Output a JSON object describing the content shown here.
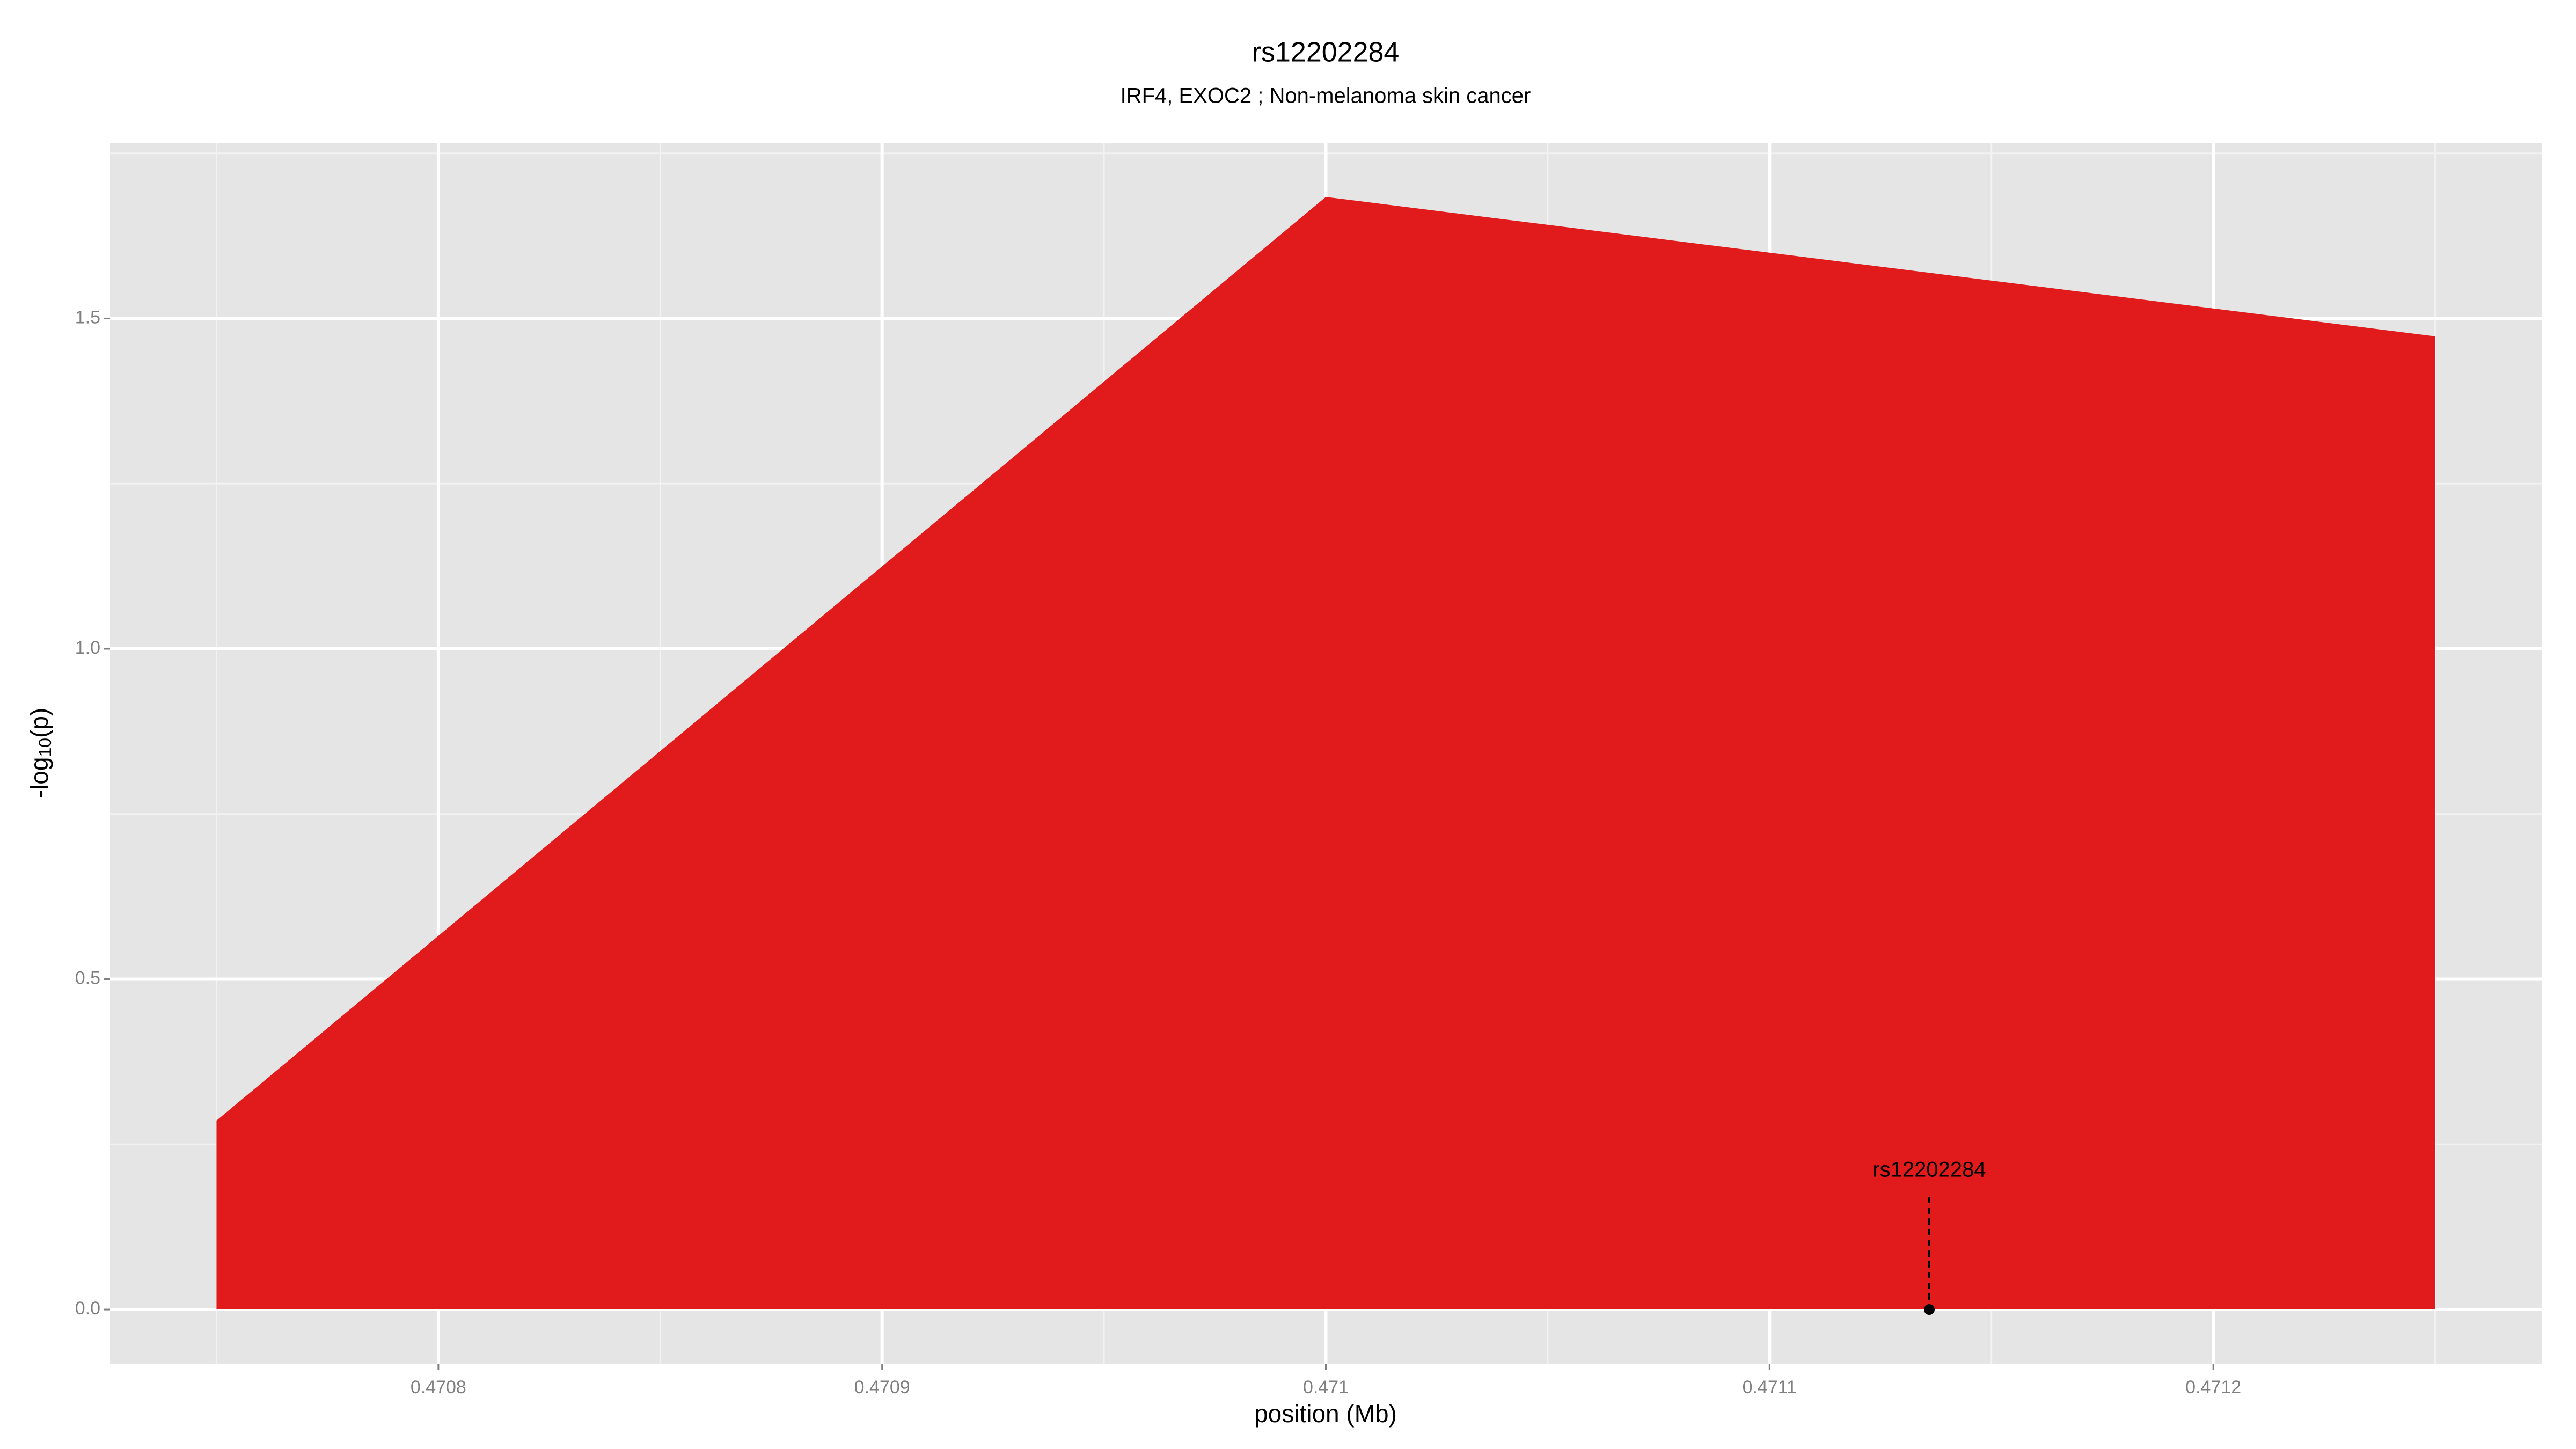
{
  "chart_data": {
    "type": "area",
    "title": "rs12202284",
    "subtitle": "IRF4, EXOC2 ; Non-melanoma skin cancer",
    "x_label": "position (Mb)",
    "y_label": [
      "-log",
      "10",
      "(p)"
    ],
    "x": [
      0.47075,
      0.471,
      0.47125
    ],
    "series": [
      {
        "color": "#e11b1c",
        "values": [
          0.286,
          1.684,
          1.473
        ]
      }
    ],
    "annotation": {
      "label": "rs12202284",
      "x": 0.471136,
      "y": 0
    },
    "xlim": [
      0.470726,
      0.471274
    ],
    "ylim": [
      -0.082,
      1.766
    ],
    "xticks": [
      0.4708,
      0.4709,
      0.471,
      0.4711,
      0.4712
    ],
    "yticks": [
      {
        "value": 0,
        "label": "0.0"
      },
      0.5,
      {
        "value": 1,
        "label": "1.0"
      },
      1.5
    ],
    "grid": true,
    "panel_color": "#e5e5e5"
  }
}
